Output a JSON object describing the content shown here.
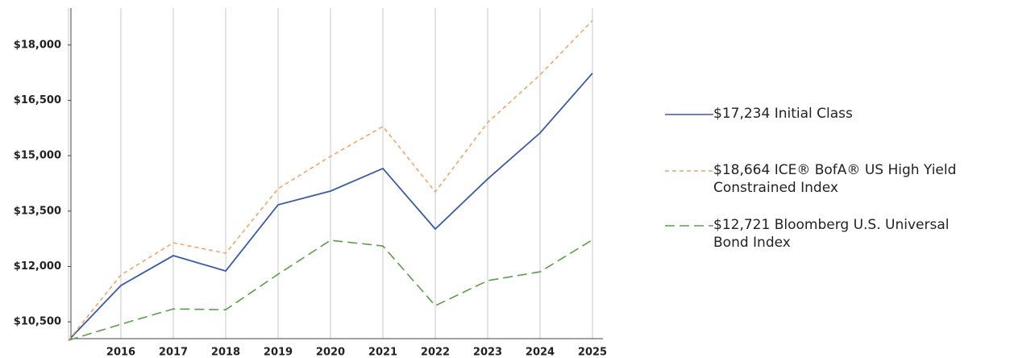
{
  "chart_data": {
    "type": "line",
    "categories": [
      null,
      "2016",
      "2017",
      "2018",
      "2019",
      "2020",
      "2021",
      "2022",
      "2023",
      "2024",
      "2025"
    ],
    "series": [
      {
        "name": "$17,234 Initial Class",
        "color": "#3b5ba8",
        "style": "solid",
        "values": [
          10000,
          11484,
          12293,
          11877,
          13670,
          14042,
          14654,
          13014,
          14370,
          15617,
          17234
        ]
      },
      {
        "name": "$18,664 ICE® BofA® US High Yield Constrained Index",
        "color": "#f2a46a",
        "style": "dashed",
        "values": [
          10000,
          11768,
          12642,
          12358,
          14108,
          14982,
          15791,
          14020,
          15901,
          17191,
          18664
        ]
      },
      {
        "name": "$12,721 Bloomberg U.S. Universal Bond Index",
        "color": "#5a9e4b",
        "style": "long-dashed",
        "values": [
          10000,
          10434,
          10849,
          10827,
          11790,
          12708,
          12555,
          10937,
          11615,
          11855,
          12721
        ]
      }
    ],
    "ylim": [
      10000,
      19000
    ],
    "yticks": [
      {
        "value": 10500,
        "label": "$10,500"
      },
      {
        "value": 12000,
        "label": "$12,000"
      },
      {
        "value": 13500,
        "label": "$13,500"
      },
      {
        "value": 15000,
        "label": "$15,000"
      },
      {
        "value": 16500,
        "label": "$16,500"
      },
      {
        "value": 18000,
        "label": "$18,000"
      }
    ],
    "grid": "vertical",
    "legend": "right"
  }
}
